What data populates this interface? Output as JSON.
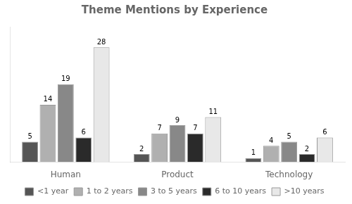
{
  "chart_data": {
    "type": "bar",
    "title": "Theme Mentions by Experience",
    "categories": [
      "Human",
      "Product",
      "Technology"
    ],
    "series": [
      {
        "name": "<1 year",
        "color": "#555555",
        "values": [
          5,
          2,
          1
        ]
      },
      {
        "name": "1 to 2 years",
        "color": "#b0b0b0",
        "values": [
          14,
          7,
          4
        ]
      },
      {
        "name": "3 to 5 years",
        "color": "#888888",
        "values": [
          19,
          9,
          5
        ]
      },
      {
        "name": "6 to 10 years",
        "color": "#2a2a2a",
        "values": [
          6,
          7,
          2
        ]
      },
      {
        "name": ">10 years",
        "color": "#e8e8e8",
        "values": [
          28,
          11,
          6
        ]
      }
    ],
    "ylim": [
      0,
      33
    ],
    "grid": false,
    "legend": "bottom",
    "data_labels": true,
    "tick_labels": "x"
  }
}
